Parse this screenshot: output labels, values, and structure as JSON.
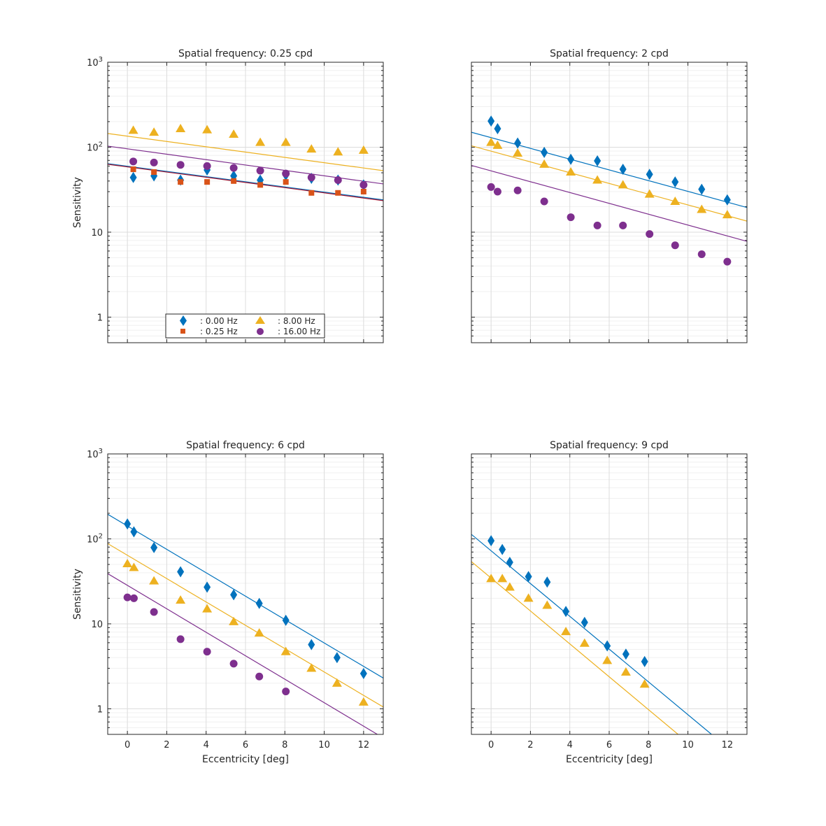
{
  "colors": {
    "f0": "#0072BD",
    "f025": "#D95319",
    "f8": "#EDB120",
    "f16": "#7E2F8E",
    "fit_f0": "#0072BD",
    "fit_f025": "#A2142F",
    "grid": "#dcdcdc",
    "minor_grid": "#f0f0f0",
    "axis": "#262626"
  },
  "legend": {
    "location": "bottom-center of first panel",
    "entries": [
      {
        "label": ": 0.00 Hz",
        "marker": "diamond",
        "color_key": "f0"
      },
      {
        "label": ": 0.25 Hz",
        "marker": "square",
        "color_key": "f025"
      },
      {
        "label": ": 8.00 Hz",
        "marker": "triangle",
        "color_key": "f8"
      },
      {
        "label": ": 16.00 Hz",
        "marker": "circle",
        "color_key": "f16"
      }
    ]
  },
  "chart_data": [
    {
      "type": "scatter",
      "title": "Spatial frequency: 0.25 cpd",
      "xlabel": "",
      "ylabel": "Sensitivity",
      "xlim": [
        -1,
        13
      ],
      "ylim": [
        0.5,
        1000
      ],
      "yscale": "log",
      "grid": true,
      "show_xticklabels": false,
      "show_yticklabels": true,
      "xticks": [
        "0",
        "2",
        "4",
        "6",
        "8",
        "10",
        "12"
      ],
      "yticks": [
        "1",
        "10",
        "10^2",
        "10^3"
      ],
      "series": [
        {
          "name": ": 0.00 Hz",
          "marker": "diamond",
          "color_key": "f0",
          "x": [
            0.3,
            1.35,
            2.7,
            4.05,
            5.4,
            6.75,
            8.05,
            9.35,
            10.7,
            12.0
          ],
          "y": [
            44,
            46,
            41,
            54,
            46,
            41,
            47,
            43,
            41,
            36
          ],
          "fit": {
            "x": [
              -1,
              13
            ],
            "y": [
              64,
              24
            ]
          }
        },
        {
          "name": ": 0.25 Hz",
          "marker": "square",
          "color_key": "f025",
          "x": [
            0.3,
            1.35,
            2.7,
            4.05,
            5.4,
            6.75,
            8.05,
            9.35,
            10.7,
            12.0
          ],
          "y": [
            55,
            51,
            39,
            39,
            40,
            36,
            39,
            29,
            29,
            30
          ],
          "fit": {
            "x": [
              -1,
              13
            ],
            "y": [
              63,
              23.5
            ],
            "color_key": "fit_f025"
          }
        },
        {
          "name": ": 8.00 Hz",
          "marker": "triangle",
          "color_key": "f8",
          "x": [
            0.3,
            1.35,
            2.7,
            4.05,
            5.4,
            6.75,
            8.05,
            9.35,
            10.7,
            12.0
          ],
          "y": [
            158,
            150,
            165,
            160,
            142,
            114,
            114,
            95,
            88,
            92
          ],
          "fit": {
            "x": [
              -1,
              13
            ],
            "y": [
              145,
              53
            ]
          }
        },
        {
          "name": ": 16.00 Hz",
          "marker": "circle",
          "color_key": "f16",
          "x": [
            0.3,
            1.35,
            2.7,
            4.05,
            5.4,
            6.75,
            8.05,
            9.35,
            10.7,
            12.0
          ],
          "y": [
            68,
            66,
            62,
            60,
            57,
            53,
            49,
            44,
            41,
            36
          ],
          "fit": {
            "x": [
              -1,
              13
            ],
            "y": [
              103,
              37
            ]
          }
        }
      ]
    },
    {
      "type": "scatter",
      "title": "Spatial frequency: 2 cpd",
      "xlabel": "",
      "ylabel": "",
      "xlim": [
        -1,
        13
      ],
      "ylim": [
        0.5,
        1000
      ],
      "yscale": "log",
      "grid": true,
      "show_xticklabels": false,
      "show_yticklabels": false,
      "xticks": [
        "0",
        "2",
        "4",
        "6",
        "8",
        "10",
        "12"
      ],
      "yticks": [
        "1",
        "10",
        "10^2",
        "10^3"
      ],
      "series": [
        {
          "name": ": 0.00 Hz",
          "marker": "diamond",
          "color_key": "f0",
          "x": [
            0,
            0.33,
            1.35,
            2.7,
            4.05,
            5.4,
            6.7,
            8.05,
            9.35,
            10.7,
            12.0
          ],
          "y": [
            203,
            165,
            112,
            87,
            72,
            69,
            55,
            48,
            39,
            32,
            24
          ],
          "fit": {
            "x": [
              -1,
              13
            ],
            "y": [
              150,
              19.5
            ]
          }
        },
        {
          "name": ": 8.00 Hz",
          "marker": "triangle",
          "color_key": "f8",
          "x": [
            0,
            0.33,
            1.35,
            2.7,
            4.05,
            5.4,
            6.7,
            8.05,
            9.35,
            10.7,
            12.0
          ],
          "y": [
            114,
            105,
            85,
            63,
            51,
            41,
            36,
            28,
            23,
            18.5,
            16
          ],
          "fit": {
            "x": [
              -1,
              13
            ],
            "y": [
              104,
              13.5
            ]
          }
        },
        {
          "name": ": 16.00 Hz",
          "marker": "circle",
          "color_key": "f16",
          "x": [
            0,
            0.33,
            1.35,
            2.7,
            4.05,
            5.4,
            6.7,
            8.05,
            9.35,
            10.7,
            12.0
          ],
          "y": [
            34,
            30,
            31,
            23,
            15,
            12,
            12,
            9.5,
            7,
            5.5,
            4.5
          ],
          "fit": {
            "x": [
              -1,
              13
            ],
            "y": [
              61,
              7.8
            ]
          }
        }
      ]
    },
    {
      "type": "scatter",
      "title": "Spatial frequency: 6 cpd",
      "xlabel": "Eccentricity [deg]",
      "ylabel": "Sensitivity",
      "xlim": [
        -1,
        13
      ],
      "ylim": [
        0.5,
        1000
      ],
      "yscale": "log",
      "grid": true,
      "show_xticklabels": true,
      "show_yticklabels": true,
      "xticks": [
        "0",
        "2",
        "4",
        "6",
        "8",
        "10",
        "12"
      ],
      "yticks": [
        "1",
        "10",
        "10^2",
        "10^3"
      ],
      "series": [
        {
          "name": ": 0.00 Hz",
          "marker": "diamond",
          "color_key": "f0",
          "x": [
            0,
            0.33,
            1.35,
            2.7,
            4.05,
            5.4,
            6.7,
            8.05,
            9.35,
            10.65,
            12.0
          ],
          "y": [
            150,
            121,
            79,
            41,
            27,
            22,
            17.4,
            11,
            5.7,
            4,
            2.6
          ],
          "fit": {
            "x": [
              -1,
              13
            ],
            "y": [
              195,
              2.3
            ]
          }
        },
        {
          "name": ": 8.00 Hz",
          "marker": "triangle",
          "color_key": "f8",
          "x": [
            0,
            0.33,
            1.35,
            2.7,
            4.05,
            5.4,
            6.7,
            8.05,
            9.35,
            10.65,
            12.0
          ],
          "y": [
            51,
            46,
            32,
            19,
            15,
            10.6,
            7.8,
            4.7,
            3,
            2,
            1.2
          ],
          "fit": {
            "x": [
              -1,
              13
            ],
            "y": [
              88,
              1.05
            ]
          }
        },
        {
          "name": ": 16.00 Hz",
          "marker": "circle",
          "color_key": "f16",
          "x": [
            0,
            0.33,
            1.35,
            2.7,
            4.05,
            5.4,
            6.7,
            8.05
          ],
          "y": [
            20.5,
            20,
            13.8,
            6.6,
            4.7,
            3.4,
            2.4,
            1.6
          ],
          "fit": {
            "x": [
              -1,
              12.7
            ],
            "y": [
              39,
              0.5
            ]
          }
        }
      ]
    },
    {
      "type": "scatter",
      "title": "Spatial frequency: 9 cpd",
      "xlabel": "Eccentricity [deg]",
      "ylabel": "",
      "xlim": [
        -1,
        13
      ],
      "ylim": [
        0.5,
        1000
      ],
      "yscale": "log",
      "grid": true,
      "show_xticklabels": true,
      "show_yticklabels": false,
      "xticks": [
        "0",
        "2",
        "4",
        "6",
        "8",
        "10",
        "12"
      ],
      "yticks": [
        "1",
        "10",
        "10^2",
        "10^3"
      ],
      "series": [
        {
          "name": ": 0.00 Hz",
          "marker": "diamond",
          "color_key": "f0",
          "x": [
            0,
            0.57,
            0.95,
            1.9,
            2.85,
            3.8,
            4.75,
            5.9,
            6.85,
            7.8
          ],
          "y": [
            95,
            75,
            53,
            36,
            31,
            14,
            10.4,
            5.5,
            4.4,
            3.6
          ],
          "fit": {
            "x": [
              -1,
              11.2
            ],
            "y": [
              113,
              0.5
            ]
          }
        },
        {
          "name": ": 8.00 Hz",
          "marker": "triangle",
          "color_key": "f8",
          "x": [
            0,
            0.57,
            0.95,
            1.9,
            2.85,
            3.8,
            4.75,
            5.9,
            6.85,
            7.8
          ],
          "y": [
            34,
            34,
            27,
            20,
            16.5,
            8.1,
            5.9,
            3.7,
            2.7,
            1.95
          ],
          "fit": {
            "x": [
              -1,
              9.5
            ],
            "y": [
              54,
              0.5
            ]
          }
        }
      ]
    }
  ]
}
